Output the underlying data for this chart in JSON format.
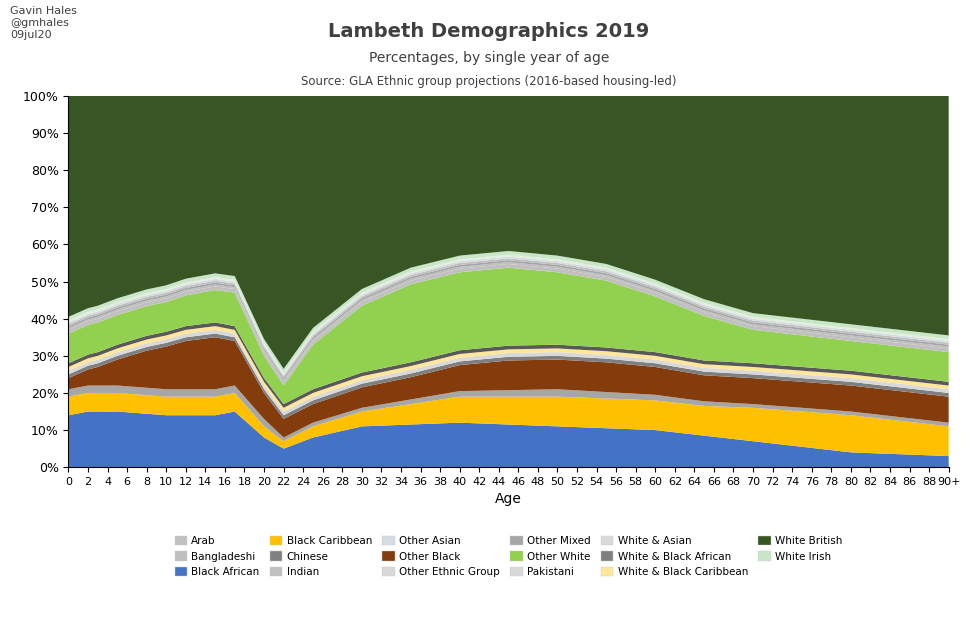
{
  "title": "Lambeth Demographics 2019",
  "subtitle": "Percentages, by single year of age",
  "source": "Source: GLA Ethnic group projections (2016-based housing-led)",
  "author": "Gavin Hales\n@gmhales\n09jul20",
  "xlabel": "Age",
  "legend_entries": [
    [
      "Arab",
      "#C0C0C0"
    ],
    [
      "Bangladeshi",
      "#BFBFBF"
    ],
    [
      "Black African",
      "#4472C4"
    ],
    [
      "Black Caribbean",
      "#FFC000"
    ],
    [
      "Chinese",
      "#808080"
    ],
    [
      "Indian",
      "#C0C0C0"
    ],
    [
      "Other Asian",
      "#D6DCE4"
    ],
    [
      "Other Black",
      "#843C0C"
    ],
    [
      "Other Ethnic Group",
      "#D9D9D9"
    ],
    [
      "Other Mixed",
      "#A6A6A6"
    ],
    [
      "Other White",
      "#92D050"
    ],
    [
      "Pakistani",
      "#D9D9D9"
    ],
    [
      "White & Asian",
      "#D9D9D9"
    ],
    [
      "White & Black African",
      "#7F7F7F"
    ],
    [
      "White & Black Caribbean",
      "#FFE699"
    ],
    [
      "White British",
      "#375623"
    ],
    [
      "White Irish",
      "#C9E6C9"
    ]
  ],
  "stack_colors": [
    "#4472C4",
    "#FFC000",
    "#A6A6A6",
    "#843C0C",
    "#7F7F7F",
    "#D9D9D9",
    "#FFE699",
    "#595959",
    "#92D050",
    "#C0C0C0",
    "#BFBFBF",
    "#A5A5A5",
    "#BFBFBF",
    "#D6DCE4",
    "#E2EFDA",
    "#C9E6C9",
    "#375623"
  ]
}
